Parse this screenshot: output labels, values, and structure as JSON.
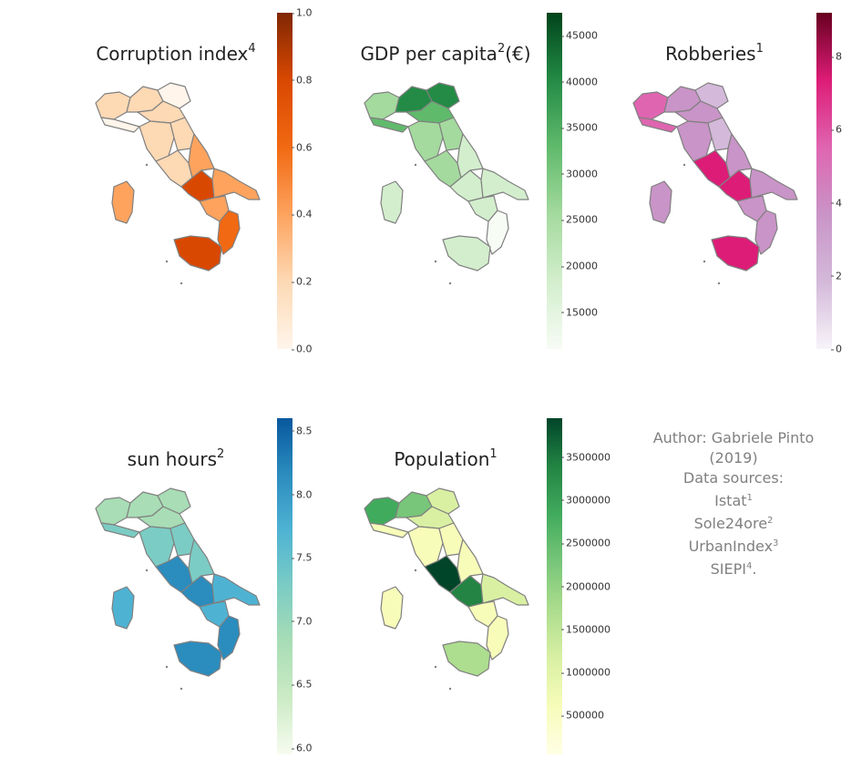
{
  "panels": [
    {
      "key": "corruption",
      "title": "Corruption index",
      "sup": "4",
      "suffix": "",
      "colormap": "Oranges",
      "colors": [
        "#fff5eb",
        "#fdd9b4",
        "#fda35e",
        "#f16913",
        "#d94801",
        "#7f2704"
      ],
      "ticks": [
        "0.0",
        "0.2",
        "0.4",
        "0.6",
        "0.8",
        "1.0"
      ],
      "range": [
        0,
        1
      ]
    },
    {
      "key": "gdp",
      "title": "GDP per capita",
      "sup": "2",
      "suffix": "(€)",
      "colormap": "Greens",
      "colors": [
        "#f7fcf5",
        "#d3eecd",
        "#a4da9e",
        "#60ba6c",
        "#238b45",
        "#00441b"
      ],
      "ticks": [
        "15000",
        "20000",
        "25000",
        "30000",
        "35000",
        "40000",
        "45000"
      ],
      "range": [
        11000,
        47500
      ]
    },
    {
      "key": "robberies",
      "title": "Robberies",
      "sup": "1",
      "suffix": "",
      "colormap": "PuRd",
      "colors": [
        "#f7f4f9",
        "#d4b9da",
        "#c994c7",
        "#df65b0",
        "#dd1c77",
        "#67001f"
      ],
      "ticks": [
        "0",
        "2",
        "4",
        "6",
        "8"
      ],
      "range": [
        0,
        9.2
      ]
    },
    {
      "key": "sun",
      "title": "sun hours",
      "sup": "2",
      "suffix": "",
      "colormap": "GnBu",
      "colors": [
        "#f7fcf0",
        "#ccebc5",
        "#a8ddb5",
        "#7bccc4",
        "#4eb3d3",
        "#2b8cbe",
        "#08589e"
      ],
      "ticks": [
        "6.0",
        "6.5",
        "7.0",
        "7.5",
        "8.0",
        "8.5"
      ],
      "range": [
        5.95,
        8.6
      ]
    },
    {
      "key": "population",
      "title": "Population",
      "sup": "1",
      "suffix": "",
      "colormap": "YlGn",
      "colors": [
        "#ffffe5",
        "#f7fcb9",
        "#d9f0a3",
        "#addd8e",
        "#78c679",
        "#41ab5d",
        "#238443",
        "#004529"
      ],
      "ticks": [
        "500000",
        "1000000",
        "1500000",
        "2000000",
        "2500000",
        "3000000",
        "3500000"
      ],
      "range": [
        50000,
        3950000
      ]
    }
  ],
  "credits": {
    "author": "Author: Gabriele Pinto (2019)",
    "sources_label": "Data sources:",
    "source1": "Istat",
    "source1_sup": "1",
    "source2": "Sole24ore",
    "source2_sup": "2",
    "source3": "UrbanIndex",
    "source3_sup": "3",
    "source4": "SIEPI",
    "source4_sup": "4",
    "source4_end": "."
  },
  "border_color": "#808080"
}
